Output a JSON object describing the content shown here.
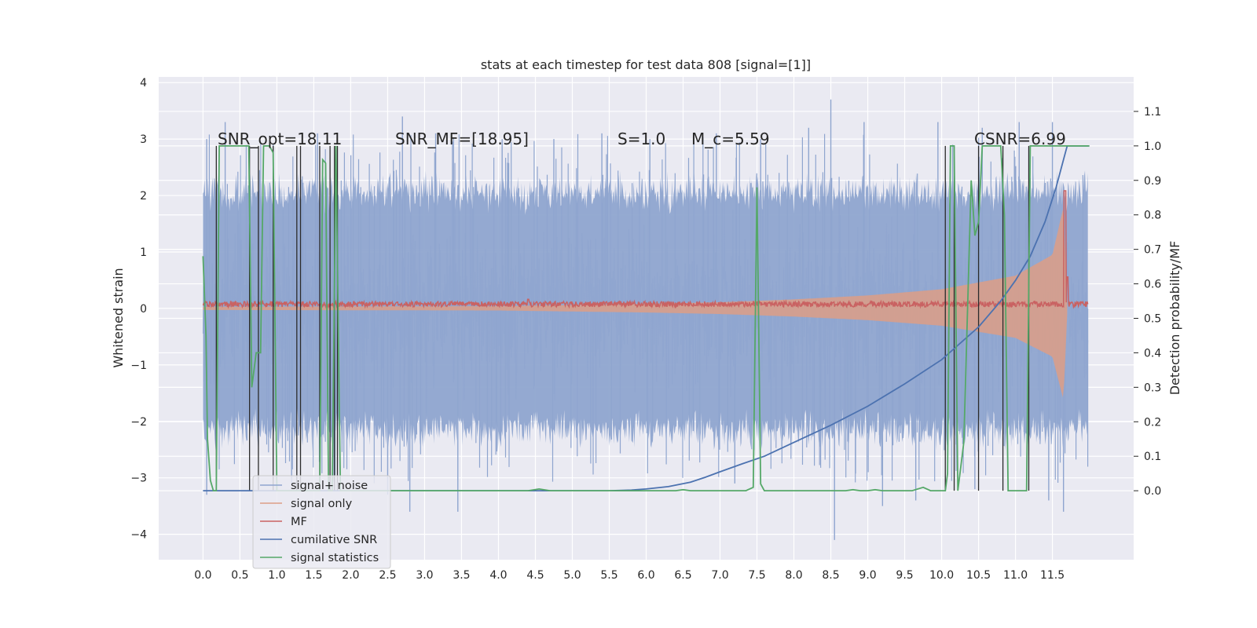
{
  "chart_data": {
    "type": "line",
    "title": "stats at each timestep for test data 808 [signal=[1]]",
    "xlabel": "",
    "ylabel": "Whitened strain",
    "y2label": "Detection probability/MF",
    "xlim": [
      -0.6,
      12.6
    ],
    "ylim": [
      -4.45,
      4.1
    ],
    "y2lim": [
      -0.2,
      1.2
    ],
    "x_ticks": [
      0.0,
      0.5,
      1.0,
      1.5,
      2.0,
      2.5,
      3.0,
      3.5,
      4.0,
      4.5,
      5.0,
      5.5,
      6.0,
      6.5,
      7.0,
      7.5,
      8.0,
      8.5,
      9.0,
      9.5,
      10.0,
      10.5,
      11.0,
      11.5
    ],
    "x_tick_labels": [
      "0.0",
      "0.5",
      "1.0",
      "1.5",
      "2.0",
      "2.5",
      "3.0",
      "3.5",
      "4.0",
      "4.5",
      "5.0",
      "5.5",
      "6.0",
      "6.5",
      "7.0",
      "7.5",
      "8.0",
      "8.5",
      "9.0",
      "9.5",
      "10.0",
      "10.5",
      "11.0",
      "11.5"
    ],
    "y_ticks": [
      -4,
      -3,
      -2,
      -1,
      0,
      1,
      2,
      3,
      4
    ],
    "y_tick_labels": [
      "−4",
      "−3",
      "−2",
      "−1",
      "0",
      "1",
      "2",
      "3",
      "4"
    ],
    "y2_ticks": [
      0.0,
      0.1,
      0.2,
      0.3,
      0.4,
      0.5,
      0.6,
      0.7,
      0.8,
      0.9,
      1.0,
      1.1
    ],
    "y2_tick_labels": [
      "0.0",
      "0.1",
      "0.2",
      "0.3",
      "0.4",
      "0.5",
      "0.6",
      "0.7",
      "0.8",
      "0.9",
      "1.0",
      "1.1"
    ],
    "grid": true,
    "legend_placement": "lower-left",
    "annotations": [
      {
        "text": "SNR_opt=18.11",
        "x": 0.2,
        "y": 2.9
      },
      {
        "text": "SNR_MF=[18.95]",
        "x": 2.6,
        "y": 2.9
      },
      {
        "text": "S=1.0",
        "x": 5.6,
        "y": 2.9
      },
      {
        "text": "M_c=5.59",
        "x": 6.6,
        "y": 2.9
      },
      {
        "text": "CSNR=6.99",
        "x": 10.4,
        "y": 2.9
      }
    ],
    "series": [
      {
        "name": "signal+ noise",
        "axis": "left",
        "color": "#8fa5cf",
        "style": "dense-noise",
        "x_range": [
          0.0,
          11.98
        ],
        "envelope_typical": [
          -2.2,
          2.1
        ],
        "spikes_top": [
          [
            0.05,
            3.0
          ],
          [
            0.3,
            3.3
          ],
          [
            0.95,
            2.9
          ],
          [
            1.55,
            3.1
          ],
          [
            2.7,
            3.4
          ],
          [
            3.15,
            3.1
          ],
          [
            4.05,
            3.0
          ],
          [
            4.75,
            3.0
          ],
          [
            5.4,
            3.1
          ],
          [
            6.05,
            3.0
          ],
          [
            6.95,
            3.1
          ],
          [
            7.55,
            3.0
          ],
          [
            8.2,
            3.2
          ],
          [
            8.5,
            3.7
          ],
          [
            8.95,
            3.3
          ],
          [
            9.95,
            3.3
          ],
          [
            10.55,
            3.2
          ],
          [
            11.05,
            3.3
          ],
          [
            11.5,
            3.3
          ]
        ],
        "spikes_bottom": [
          [
            0.05,
            -3.3
          ],
          [
            1.2,
            -3.1
          ],
          [
            2.5,
            -3.3
          ],
          [
            2.8,
            -3.6
          ],
          [
            3.45,
            -3.6
          ],
          [
            7.2,
            -3.1
          ],
          [
            8.55,
            -4.1
          ],
          [
            9.2,
            -3.5
          ],
          [
            9.65,
            -3.4
          ],
          [
            10.45,
            -3.2
          ],
          [
            11.45,
            -3.4
          ],
          [
            11.65,
            -3.6
          ]
        ]
      },
      {
        "name": "signal only",
        "axis": "left",
        "color": "#dd9e86",
        "style": "chirp-envelope",
        "amplitude": [
          [
            0.0,
            0.03
          ],
          [
            4.0,
            0.04
          ],
          [
            6.0,
            0.08
          ],
          [
            7.0,
            0.11
          ],
          [
            8.0,
            0.16
          ],
          [
            9.0,
            0.23
          ],
          [
            10.0,
            0.34
          ],
          [
            11.0,
            0.58
          ],
          [
            11.5,
            0.95
          ],
          [
            11.65,
            1.8
          ],
          [
            11.7,
            0.1
          ]
        ]
      },
      {
        "name": "MF",
        "axis": "right",
        "color": "#c96262",
        "style": "noisy-line",
        "baseline": 0.541,
        "jitter": 0.008,
        "peaks": [
          [
            4.4,
            0.555
          ],
          [
            11.67,
            0.87
          ],
          [
            11.7,
            0.62
          ]
        ]
      },
      {
        "name": "cumilative SNR",
        "axis": "right",
        "color": "#4c72b0",
        "points": [
          [
            0.0,
            0.0
          ],
          [
            1.0,
            0.0
          ],
          [
            2.0,
            0.0
          ],
          [
            3.0,
            0.0
          ],
          [
            4.0,
            0.0
          ],
          [
            5.0,
            0.0
          ],
          [
            5.5,
            0.0
          ],
          [
            5.8,
            0.002
          ],
          [
            6.0,
            0.005
          ],
          [
            6.3,
            0.012
          ],
          [
            6.6,
            0.025
          ],
          [
            6.8,
            0.039
          ],
          [
            7.0,
            0.055
          ],
          [
            7.3,
            0.078
          ],
          [
            7.6,
            0.1
          ],
          [
            8.0,
            0.14
          ],
          [
            8.5,
            0.19
          ],
          [
            9.0,
            0.245
          ],
          [
            9.5,
            0.31
          ],
          [
            10.0,
            0.38
          ],
          [
            10.5,
            0.475
          ],
          [
            10.8,
            0.55
          ],
          [
            11.0,
            0.61
          ],
          [
            11.2,
            0.68
          ],
          [
            11.4,
            0.78
          ],
          [
            11.55,
            0.88
          ],
          [
            11.65,
            0.96
          ],
          [
            11.7,
            1.0
          ],
          [
            12.0,
            1.0
          ]
        ]
      },
      {
        "name": "signal statistics",
        "axis": "right",
        "color": "#55a868",
        "points": [
          [
            0.0,
            0.68
          ],
          [
            0.04,
            0.45
          ],
          [
            0.06,
            0.15
          ],
          [
            0.1,
            0.03
          ],
          [
            0.14,
            0.0
          ],
          [
            0.18,
            0.0
          ],
          [
            0.22,
            1.0
          ],
          [
            0.62,
            1.0
          ],
          [
            0.66,
            0.3
          ],
          [
            0.72,
            0.4
          ],
          [
            0.78,
            0.4
          ],
          [
            0.82,
            1.0
          ],
          [
            0.9,
            1.0
          ],
          [
            0.95,
            0.98
          ],
          [
            1.0,
            0.0
          ],
          [
            1.25,
            0.0
          ],
          [
            1.3,
            0.0
          ],
          [
            1.35,
            0.0
          ],
          [
            1.58,
            0.0
          ],
          [
            1.62,
            0.96
          ],
          [
            1.66,
            0.95
          ],
          [
            1.7,
            0.0
          ],
          [
            1.75,
            0.0
          ],
          [
            1.8,
            1.0
          ],
          [
            1.86,
            0.0
          ],
          [
            2.5,
            0.0
          ],
          [
            4.4,
            0.0
          ],
          [
            4.55,
            0.005
          ],
          [
            4.7,
            0.0
          ],
          [
            6.4,
            0.0
          ],
          [
            6.5,
            0.003
          ],
          [
            6.6,
            0.0
          ],
          [
            7.35,
            0.0
          ],
          [
            7.45,
            0.01
          ],
          [
            7.5,
            0.88
          ],
          [
            7.55,
            0.02
          ],
          [
            7.6,
            0.0
          ],
          [
            8.7,
            0.0
          ],
          [
            8.8,
            0.003
          ],
          [
            8.9,
            0.0
          ],
          [
            9.0,
            0.0
          ],
          [
            9.1,
            0.003
          ],
          [
            9.2,
            0.0
          ],
          [
            9.6,
            0.0
          ],
          [
            9.75,
            0.01
          ],
          [
            9.85,
            0.0
          ],
          [
            10.05,
            0.0
          ],
          [
            10.08,
            0.05
          ],
          [
            10.12,
            1.0
          ],
          [
            10.17,
            1.0
          ],
          [
            10.22,
            0.0
          ],
          [
            10.3,
            0.14
          ],
          [
            10.4,
            0.9
          ],
          [
            10.45,
            0.74
          ],
          [
            10.5,
            0.78
          ],
          [
            10.55,
            1.0
          ],
          [
            10.8,
            1.0
          ],
          [
            10.85,
            0.8
          ],
          [
            10.9,
            0.0
          ],
          [
            11.05,
            0.0
          ],
          [
            11.15,
            0.0
          ],
          [
            11.2,
            1.0
          ],
          [
            11.7,
            1.0
          ],
          [
            12.0,
            1.0
          ]
        ]
      }
    ],
    "vertical_markers": {
      "color": "#2b2b2b",
      "x": [
        0.18,
        0.63,
        0.75,
        0.95,
        1.27,
        1.32,
        1.58,
        1.72,
        1.78,
        1.82,
        10.05,
        10.17,
        10.5,
        10.83,
        11.18
      ]
    }
  },
  "legend": {
    "items": [
      {
        "label": "signal+ noise",
        "color": "#8fa5cf"
      },
      {
        "label": "signal only",
        "color": "#dd9e86"
      },
      {
        "label": "MF",
        "color": "#c96262"
      },
      {
        "label": "cumilative SNR",
        "color": "#4c72b0"
      },
      {
        "label": "signal statistics",
        "color": "#55a868"
      }
    ]
  }
}
